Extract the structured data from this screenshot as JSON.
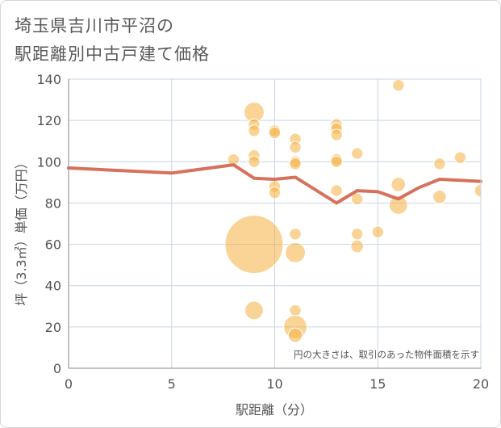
{
  "title": {
    "line1": "埼玉県吉川市平沼の",
    "line2": "駅距離別中古戸建て価格"
  },
  "chart_data": {
    "type": "scatter",
    "xlabel": "駅距離（分）",
    "ylabel": "坪（3.3㎡）単価（万円）",
    "xlim": [
      0,
      20
    ],
    "ylim": [
      0,
      140
    ],
    "x_ticks": [
      "0",
      "5",
      "10",
      "15",
      "20"
    ],
    "y_ticks": [
      "0",
      "20",
      "40",
      "60",
      "80",
      "100",
      "120",
      "140"
    ],
    "grid": true,
    "note": "円の大きさは、取引のあった物件面積を示す",
    "colors": {
      "bubble": "#f5b041",
      "bubble_opacity": 0.55,
      "line": "#d46a52",
      "grid": "#c9d6e3",
      "axis": "#888888"
    },
    "points": [
      {
        "x": 8,
        "y": 101,
        "size": 1
      },
      {
        "x": 9,
        "y": 124,
        "size": 3
      },
      {
        "x": 9,
        "y": 118,
        "size": 1
      },
      {
        "x": 9,
        "y": 115,
        "size": 1
      },
      {
        "x": 9,
        "y": 103,
        "size": 1
      },
      {
        "x": 9,
        "y": 100,
        "size": 1
      },
      {
        "x": 9,
        "y": 60,
        "size": 25
      },
      {
        "x": 9,
        "y": 28,
        "size": 2.5
      },
      {
        "x": 10,
        "y": 115,
        "size": 1
      },
      {
        "x": 10,
        "y": 114,
        "size": 1
      },
      {
        "x": 10,
        "y": 88,
        "size": 1
      },
      {
        "x": 10,
        "y": 85,
        "size": 1
      },
      {
        "x": 11,
        "y": 111,
        "size": 1
      },
      {
        "x": 11,
        "y": 107,
        "size": 1
      },
      {
        "x": 11,
        "y": 100,
        "size": 1
      },
      {
        "x": 11,
        "y": 99,
        "size": 1
      },
      {
        "x": 11,
        "y": 65,
        "size": 1
      },
      {
        "x": 11,
        "y": 56,
        "size": 3
      },
      {
        "x": 11,
        "y": 28,
        "size": 1
      },
      {
        "x": 11,
        "y": 20,
        "size": 4
      },
      {
        "x": 11,
        "y": 16,
        "size": 1.5
      },
      {
        "x": 13,
        "y": 118,
        "size": 1
      },
      {
        "x": 13,
        "y": 116,
        "size": 1
      },
      {
        "x": 13,
        "y": 113,
        "size": 1
      },
      {
        "x": 13,
        "y": 101,
        "size": 1
      },
      {
        "x": 13,
        "y": 100,
        "size": 1
      },
      {
        "x": 13,
        "y": 86,
        "size": 1
      },
      {
        "x": 14,
        "y": 104,
        "size": 1
      },
      {
        "x": 14,
        "y": 82,
        "size": 1
      },
      {
        "x": 14,
        "y": 65,
        "size": 1
      },
      {
        "x": 14,
        "y": 59,
        "size": 1.2
      },
      {
        "x": 15,
        "y": 66,
        "size": 1
      },
      {
        "x": 16,
        "y": 137,
        "size": 1
      },
      {
        "x": 16,
        "y": 89,
        "size": 1.5
      },
      {
        "x": 16,
        "y": 79,
        "size": 2.5
      },
      {
        "x": 18,
        "y": 99,
        "size": 1
      },
      {
        "x": 18,
        "y": 83,
        "size": 1.3
      },
      {
        "x": 19,
        "y": 102,
        "size": 1
      },
      {
        "x": 20,
        "y": 86,
        "size": 1.2
      }
    ],
    "line": {
      "x": [
        0,
        5,
        8,
        9,
        10,
        11,
        13,
        14,
        15,
        16,
        17,
        18,
        20
      ],
      "y": [
        97,
        94.5,
        98.5,
        92,
        91.5,
        92.5,
        80,
        86,
        85.5,
        82,
        87.5,
        91.5,
        90.5
      ]
    }
  }
}
